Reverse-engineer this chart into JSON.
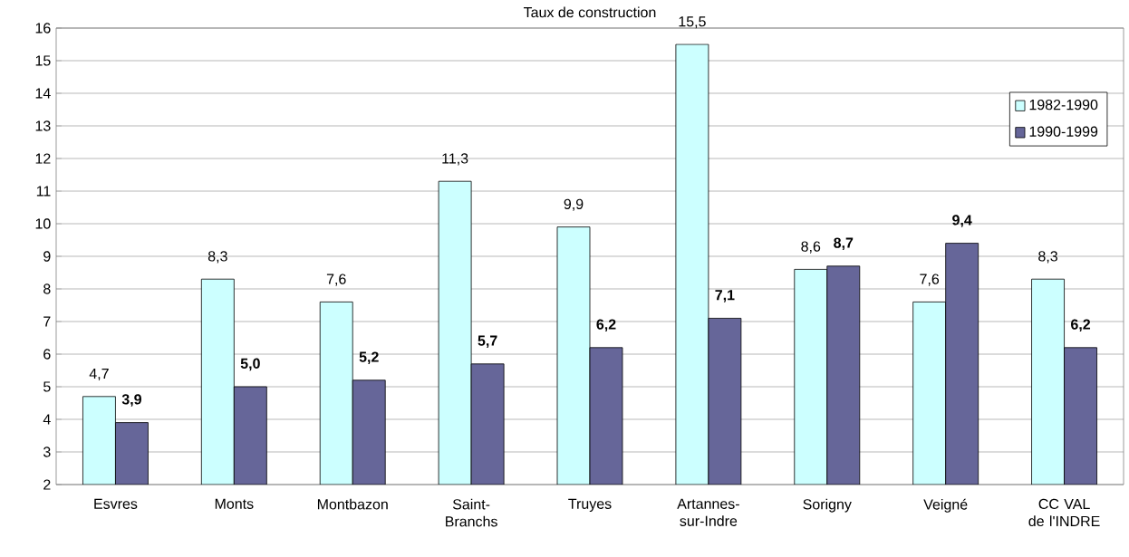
{
  "chart_data": {
    "type": "bar",
    "title": "Taux de construction",
    "categories": [
      "Esvres",
      "Monts",
      "Montbazon",
      "Saint-Branchs",
      "Truyes",
      "Artannes-sur-Indre",
      "Sorigny",
      "Veigné",
      "CC VAL de l'INDRE"
    ],
    "series": [
      {
        "name": "1982-1990",
        "color": "#ccffff",
        "values": [
          4.7,
          8.3,
          7.6,
          11.3,
          9.9,
          15.5,
          8.6,
          7.6,
          8.3
        ],
        "value_labels": [
          "4,7",
          "8,3",
          "7,6",
          "11,3",
          "9,9",
          "15,5",
          "8,6",
          "7,6",
          "8,3"
        ]
      },
      {
        "name": "1990-1999",
        "color": "#666699",
        "values": [
          3.9,
          5.0,
          5.2,
          5.7,
          6.2,
          7.1,
          8.7,
          9.4,
          6.2
        ],
        "value_labels": [
          "3,9",
          "5,0",
          "5,2",
          "5,7",
          "6,2",
          "7,1",
          "8,7",
          "9,4",
          "6,2"
        ]
      }
    ],
    "ylim": [
      2,
      16
    ],
    "yticks": [
      2,
      3,
      4,
      5,
      6,
      7,
      8,
      9,
      10,
      11,
      12,
      13,
      14,
      15,
      16
    ],
    "grid": "y",
    "legend": "top right"
  }
}
